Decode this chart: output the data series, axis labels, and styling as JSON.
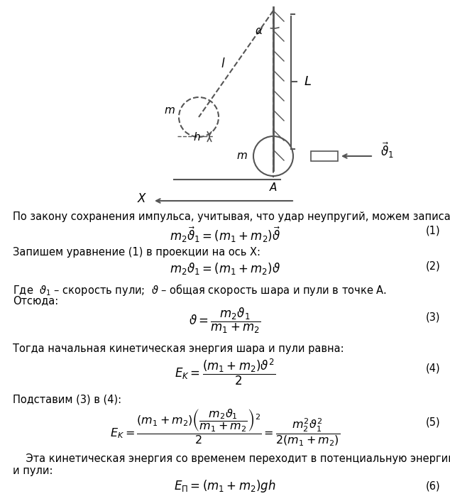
{
  "fig_width": 6.34,
  "fig_height": 7.06,
  "dpi": 100,
  "bg_color": "#ffffff",
  "text_color": "#000000",
  "diagram_color": "#555555",
  "text1": "По закону сохранения импульса, учитывая, что удар неупругий, можем записать:",
  "eq1": "$m_2\\vec{\\vartheta}_1 = (m_1 + m_2)\\vec{\\vartheta}$",
  "eq1_num": "(1)",
  "text2": "Запишем уравнение (1) в проекции на ось X:",
  "eq2": "$m_2\\vartheta_1 = (m_1 + m_2)\\vartheta$",
  "eq2_num": "(2)",
  "text3": "Где  $\\vartheta_1$ – скорость пули;  $\\vartheta$ – общая скорость шара и пули в точке A.",
  "text4": "Отсюда:",
  "eq3_num": "(3)",
  "text5": "Тогда начальная кинетическая энергия шара и пули равна:",
  "eq4_num": "(4)",
  "text6": "Подставим (3) в (4):",
  "eq5_num": "(5)",
  "text7": "    Эта кинетическая энергия со временем переходит в потенциальную энергию шара\nи пули:",
  "eq6_num": "(6)"
}
